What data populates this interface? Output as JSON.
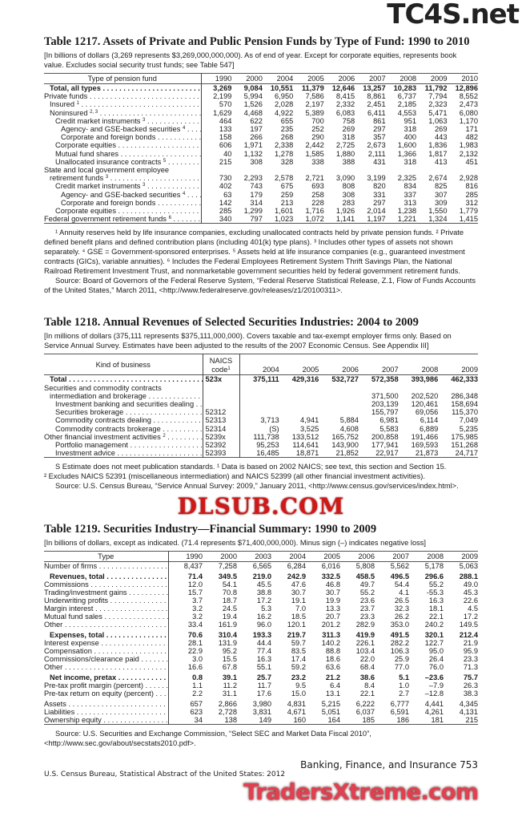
{
  "t1217": {
    "title": "Table 1217. Assets of Private and Public Pension Funds by Type of Fund: 1990 to 2010",
    "headnote": "[In billions of dollars (3,269 represents $3,269,000,000,000). As of end of year. Except for corporate equities, represents book value. Excludes social security trust funds; see Table 547]",
    "stub_header": "Type of pension fund",
    "years": [
      "1990",
      "2000",
      "2004",
      "2005",
      "2006",
      "2007",
      "2008",
      "2009",
      "2010"
    ],
    "rows": [
      {
        "label": "Total, all types",
        "bold": true,
        "indent": 1,
        "values": [
          "3,269",
          "9,084",
          "10,551",
          "11,379",
          "12,646",
          "13,257",
          "10,283",
          "11,792",
          "12,896"
        ]
      },
      {
        "label": "Private funds",
        "indent": 0,
        "values": [
          "2,199",
          "5,994",
          "6,950",
          "7,586",
          "8,415",
          "8,861",
          "6,737",
          "7,794",
          "8,552"
        ]
      },
      {
        "label": "Insured",
        "sup": "1",
        "indent": 1,
        "values": [
          "570",
          "1,526",
          "2,028",
          "2,197",
          "2,332",
          "2,451",
          "2,185",
          "2,323",
          "2,473"
        ]
      },
      {
        "label": "Noninsured",
        "sup": "2, 3",
        "indent": 1,
        "values": [
          "1,629",
          "4,468",
          "4,922",
          "5,389",
          "6,083",
          "6,411",
          "4,553",
          "5,471",
          "6,080"
        ]
      },
      {
        "label": "Credit market instruments",
        "sup": "3",
        "indent": 2,
        "values": [
          "464",
          "622",
          "655",
          "700",
          "758",
          "861",
          "951",
          "1,063",
          "1,170"
        ]
      },
      {
        "label": "Agency- and GSE-backed securities",
        "sup": "4",
        "indent": 3,
        "values": [
          "133",
          "197",
          "235",
          "252",
          "269",
          "297",
          "318",
          "269",
          "171"
        ]
      },
      {
        "label": "Corporate and foreign bonds",
        "indent": 3,
        "values": [
          "158",
          "266",
          "268",
          "290",
          "318",
          "357",
          "400",
          "443",
          "482"
        ]
      },
      {
        "label": "Corporate equities",
        "indent": 2,
        "values": [
          "606",
          "1,971",
          "2,338",
          "2,442",
          "2,725",
          "2,673",
          "1,600",
          "1,836",
          "1,983"
        ]
      },
      {
        "label": "Mutual fund shares",
        "indent": 2,
        "values": [
          "40",
          "1,132",
          "1,278",
          "1,585",
          "1,880",
          "2,111",
          "1,366",
          "1,817",
          "2,132"
        ]
      },
      {
        "label": "Unallocated insurance contracts",
        "sup": "5",
        "indent": 2,
        "values": [
          "215",
          "308",
          "328",
          "338",
          "388",
          "431",
          "318",
          "413",
          "451"
        ]
      },
      {
        "label": "State and local government employee",
        "indent": 0,
        "nodots": true,
        "values": [
          "",
          "",
          "",
          "",
          "",
          "",
          "",
          "",
          ""
        ]
      },
      {
        "label": "retirement funds",
        "sup": "3",
        "indent": 1,
        "values": [
          "730",
          "2,293",
          "2,578",
          "2,721",
          "3,090",
          "3,199",
          "2,325",
          "2,674",
          "2,928"
        ]
      },
      {
        "label": "Credit market instruments",
        "sup": "3",
        "indent": 2,
        "values": [
          "402",
          "743",
          "675",
          "693",
          "808",
          "820",
          "834",
          "825",
          "816"
        ]
      },
      {
        "label": "Agency- and GSE-backed securities",
        "sup": "4",
        "indent": 3,
        "values": [
          "63",
          "179",
          "259",
          "258",
          "308",
          "331",
          "337",
          "307",
          "285"
        ]
      },
      {
        "label": "Corporate and foreign bonds",
        "indent": 3,
        "values": [
          "142",
          "314",
          "213",
          "228",
          "283",
          "297",
          "313",
          "309",
          "312"
        ]
      },
      {
        "label": "Corporate equities",
        "indent": 2,
        "values": [
          "285",
          "1,299",
          "1,601",
          "1,716",
          "1,926",
          "2,014",
          "1,238",
          "1,550",
          "1,779"
        ]
      },
      {
        "label": "Federal government retirement funds",
        "sup": "6",
        "indent": 0,
        "values": [
          "340",
          "797",
          "1,023",
          "1,072",
          "1,141",
          "1,197",
          "1,221",
          "1,324",
          "1,415"
        ]
      }
    ],
    "footnotes": "¹ Annuity reserves held by life insurance companies, excluding unallocated contracts held by private pension funds. ² Private defined benefit plans and defined contribution plans (including 401(k) type plans). ³ Includes other types of assets not shown separately. ⁴ GSE = Government-sponsored enterprises. ⁵ Assets held at life insurance companies (e.g., guaranteed investment contracts (GICs), variable annuities). ⁶ Includes the Federal Employees Retirement System Thrift Savings Plan, the National Railroad Retirement Investment Trust, and nonmarketable government securities held by federal government retirement funds.",
    "source": "Source: Board of Governors of the Federal Reserve System, “Federal Reserve Statistical Release, Z.1, Flow of Funds Accounts of the United States,” March 2011, <http://www.federalreserve.gov/releases/z1/20100311>."
  },
  "t1218": {
    "title": "Table 1218. Annual Revenues of Selected Securities Industries: 2004 to 2009",
    "headnote": "[In millions of dollars (375,111 represents $375,111,000,000). Covers taxable and tax-exempt employer firms only. Based on Service Annual Survey. Estimates have been adjusted to the results of the 2007 Economic Census. See Appendix III]",
    "stub_header": "Kind of business",
    "code_header": "NAICS code",
    "code_sup": "1",
    "years": [
      "2004",
      "2005",
      "2006",
      "2007",
      "2008",
      "2009"
    ],
    "rows": [
      {
        "label": "Total",
        "bold": true,
        "indent": 1,
        "code": "523x",
        "values": [
          "375,111",
          "429,316",
          "532,727",
          "572,358",
          "393,986",
          "462,333"
        ]
      },
      {
        "label": "Securities and commodity contracts",
        "indent": 0,
        "nodots": true,
        "code": "",
        "values": [
          "",
          "",
          "",
          "",
          "",
          ""
        ]
      },
      {
        "label": "intermediation and brokerage",
        "indent": 1,
        "code": "",
        "values": [
          "",
          "",
          "",
          "371,500",
          "202,520",
          "286,348"
        ]
      },
      {
        "label": "Investment banking and securities dealing",
        "indent": 2,
        "code": "",
        "values": [
          "",
          "",
          "",
          "203,139",
          "120,461",
          "158,694"
        ]
      },
      {
        "label": "Securities brokerage",
        "indent": 2,
        "code": "52312",
        "values": [
          "",
          "",
          "",
          "155,797",
          "69,056",
          "115,370"
        ]
      },
      {
        "label": "Commodity contracts dealing",
        "indent": 2,
        "code": "52313",
        "values": [
          "3,713",
          "4,941",
          "5,884",
          "6,981",
          "6,114",
          "7,049"
        ]
      },
      {
        "label": "Commodity contracts brokerage",
        "indent": 2,
        "code": "52314",
        "values": [
          "(S)",
          "3,525",
          "4,608",
          "5,583",
          "6,889",
          "5,235"
        ]
      },
      {
        "label": "Other financial investment activities",
        "sup": "2",
        "indent": 0,
        "code": "5239x",
        "values": [
          "111,738",
          "133,512",
          "165,752",
          "200,858",
          "191,466",
          "175,985"
        ]
      },
      {
        "label": "Portfolio management",
        "indent": 2,
        "code": "52392",
        "values": [
          "95,253",
          "114,641",
          "143,900",
          "177,941",
          "169,593",
          "151,268"
        ]
      },
      {
        "label": "Investment advice",
        "indent": 2,
        "code": "52393",
        "values": [
          "16,485",
          "18,871",
          "21,852",
          "22,917",
          "21,873",
          "24,717"
        ]
      }
    ],
    "footnote1": "S Estimate does not meet publication standards. ¹ Data is based on 2002 NAICS; see text, this section and Section 15.",
    "footnote2": "² Excludes NAICS 52391 (miscellaneous intermediation) and NAICS 52399 (all other financial investment activities).",
    "source": "Source: U.S. Census Bureau, “Service Annual Survey: 2009,” January 2011, <http://www.census.gov/services/index.html>."
  },
  "t1219": {
    "title": "Table 1219. Securities Industry—Financial Summary: 1990 to 2009",
    "headnote": "[In billions of dollars, except as indicated. (71.4 represents $71,400,000,000). Minus sign (–) indicates negative loss]",
    "stub_header": "Type",
    "years": [
      "1990",
      "2000",
      "2003",
      "2004",
      "2005",
      "2006",
      "2007",
      "2008",
      "2009"
    ],
    "rows": [
      {
        "label": "Number of firms",
        "indent": 0,
        "values": [
          "8,437",
          "7,258",
          "6,565",
          "6,284",
          "6,016",
          "5,808",
          "5,562",
          "5,178",
          "5,063"
        ]
      },
      {
        "label": "Revenues, total",
        "bold": true,
        "gap": true,
        "indent": 1,
        "values": [
          "71.4",
          "349.5",
          "219.0",
          "242.9",
          "332.5",
          "458.5",
          "496.5",
          "296.6",
          "288.1"
        ]
      },
      {
        "label": "Commissions",
        "indent": 0,
        "values": [
          "12.0",
          "54.1",
          "45.5",
          "47.6",
          "46.8",
          "49.7",
          "54.4",
          "55.2",
          "49.0"
        ]
      },
      {
        "label": "Trading/investment gains",
        "indent": 0,
        "values": [
          "15.7",
          "70.8",
          "38.8",
          "30.7",
          "30.7",
          "55.2",
          "4.1",
          "-55.3",
          "45.3"
        ]
      },
      {
        "label": "Underwriting profits",
        "indent": 0,
        "values": [
          "3.7",
          "18.7",
          "17.2",
          "19.1",
          "19.9",
          "23.6",
          "26.5",
          "16.3",
          "22.6"
        ]
      },
      {
        "label": "Margin interest",
        "indent": 0,
        "values": [
          "3.2",
          "24.5",
          "5.3",
          "7.0",
          "13.3",
          "23.7",
          "32.3",
          "18.1",
          "4.5"
        ]
      },
      {
        "label": "Mutual fund sales",
        "indent": 0,
        "values": [
          "3.2",
          "19.4",
          "16.2",
          "18.5",
          "20.7",
          "23.3",
          "26.2",
          "22.1",
          "17.2"
        ]
      },
      {
        "label": "Other",
        "indent": 0,
        "values": [
          "33.4",
          "161.9",
          "96.0",
          "120.1",
          "201.2",
          "282.9",
          "353.0",
          "240.2",
          "149.5"
        ]
      },
      {
        "label": "Expenses, total",
        "bold": true,
        "gap": true,
        "indent": 1,
        "values": [
          "70.6",
          "310.4",
          "193.3",
          "219.7",
          "311.3",
          "419.9",
          "491.5",
          "320.1",
          "212.4"
        ]
      },
      {
        "label": "Interest expense",
        "indent": 0,
        "values": [
          "28.1",
          "131.9",
          "44.4",
          "59.7",
          "140.2",
          "226.1",
          "282.2",
          "122.7",
          "21.9"
        ]
      },
      {
        "label": "Compensation",
        "indent": 0,
        "values": [
          "22.9",
          "95.2",
          "77.4",
          "83.5",
          "88.8",
          "103.4",
          "106.3",
          "95.0",
          "95.9"
        ]
      },
      {
        "label": "Commissions/clearance paid",
        "indent": 0,
        "values": [
          "3.0",
          "15.5",
          "16.3",
          "17.4",
          "18.6",
          "22.0",
          "25.9",
          "26.4",
          "23.3"
        ]
      },
      {
        "label": "Other",
        "indent": 0,
        "values": [
          "16.6",
          "67.8",
          "55.1",
          "59.2",
          "63.6",
          "68.4",
          "77.0",
          "76.0",
          "71.3"
        ]
      },
      {
        "label": "Net income, pretax",
        "bold": true,
        "gap": true,
        "indent": 1,
        "values": [
          "0.8",
          "39.1",
          "25.7",
          "23.2",
          "21.2",
          "38.6",
          "5.1",
          "–23.6",
          "75.7"
        ]
      },
      {
        "label": "Pre-tax profit margin (percent)",
        "indent": 0,
        "values": [
          "1.1",
          "11.2",
          "11.7",
          "9.5",
          "6.4",
          "8.4",
          "1.0",
          "–7.9",
          "26.3"
        ]
      },
      {
        "label": "Pre-tax return on equity (percent)",
        "indent": 0,
        "values": [
          "2.2",
          "31.1",
          "17.6",
          "15.0",
          "13.1",
          "22.1",
          "2.7",
          "–12.8",
          "38.3"
        ]
      },
      {
        "label": "Assets",
        "gap": true,
        "indent": 0,
        "values": [
          "657",
          "2,866",
          "3,980",
          "4,831",
          "5,215",
          "6,222",
          "6,777",
          "4,441",
          "4,345"
        ]
      },
      {
        "label": "Liabilities",
        "indent": 0,
        "values": [
          "623",
          "2,728",
          "3,831",
          "4,671",
          "5,051",
          "6,037",
          "6,591",
          "4,261",
          "4,131"
        ]
      },
      {
        "label": "Ownership equity",
        "indent": 0,
        "values": [
          "34",
          "138",
          "149",
          "160",
          "164",
          "185",
          "186",
          "181",
          "215"
        ]
      }
    ],
    "source": "Source: U.S. Securities and Exchange Commission, “Select SEC and Market Data Fiscal 2010”, <http://www.sec.gov/about/secstats2010.pdf>."
  },
  "footer": {
    "section_page": "Banking, Finance, and Insurance  753",
    "publication": "U.S. Census Bureau, Statistical Abstract of the United States: 2012"
  },
  "watermarks": [
    "TC4S.net",
    "DLSUB.COM",
    "TradersXtreme.com"
  ]
}
